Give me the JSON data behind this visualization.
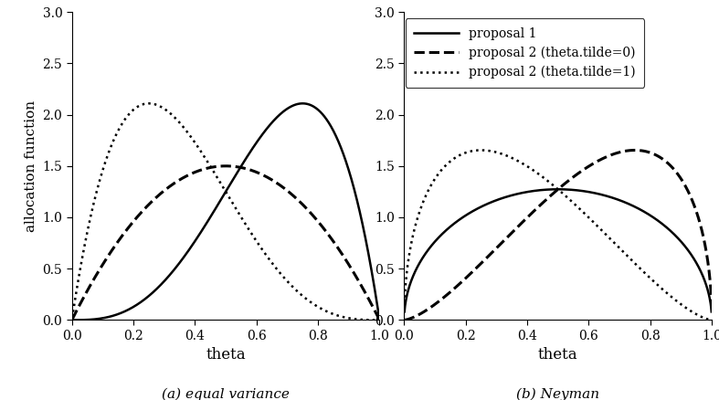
{
  "title_a": "(a) equal variance",
  "title_b": "(b) Neyman",
  "xlabel": "theta",
  "ylabel": "allocation function",
  "xlim": [
    0.0,
    1.0
  ],
  "ylim": [
    0.0,
    3.0
  ],
  "yticks": [
    0.0,
    0.5,
    1.0,
    1.5,
    2.0,
    2.5,
    3.0
  ],
  "ytick_labels": [
    "0.0",
    "0.5",
    "1.0",
    "1.5",
    "2.0",
    "2.5",
    "3.0"
  ],
  "xticks": [
    0.0,
    0.2,
    0.4,
    0.6,
    0.8,
    1.0
  ],
  "xtick_labels": [
    "0.0",
    "0.2",
    "0.4",
    "0.6",
    "0.8",
    "1.0"
  ],
  "legend_labels": [
    "proposal 1",
    "proposal 2 (theta.tilde=0)",
    "proposal 2 (theta.tilde=1)"
  ],
  "legend_linestyles": [
    "-",
    "--",
    ":"
  ],
  "line_color": "black",
  "figsize": [
    7.87,
    4.38
  ],
  "dpi": 100,
  "prop1_a_coef": 20.0,
  "prop1_a_p": 3.0,
  "prop1_a_q": 1.0,
  "prop2_t0_a_coef": 6.0,
  "prop2_t0_a_p": 1.0,
  "prop2_t0_a_q": 1.0,
  "prop2_t1_a_coef": 20.0,
  "prop2_t1_a_p": 1.0,
  "prop2_t1_a_q": 3.0,
  "prop1_b_coef": 2.5465,
  "prop1_b_p": 0.5,
  "prop1_b_q": 0.5,
  "prop2_t0_b_coef": 5.093,
  "prop2_t0_b_p": 1.5,
  "prop2_t0_b_q": 0.5,
  "prop2_t1_b_coef": 5.093,
  "prop2_t1_b_p": 0.5,
  "prop2_t1_b_q": 1.5,
  "lw_solid": 1.8,
  "lw_dash": 2.2,
  "lw_dot": 1.8
}
